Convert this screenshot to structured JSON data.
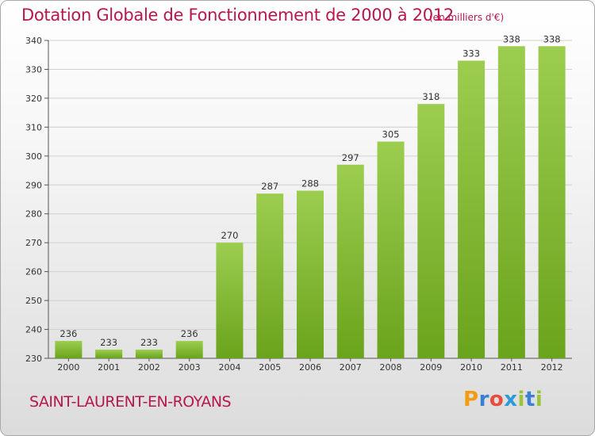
{
  "chart_data": {
    "type": "bar",
    "title": "Dotation Globale de Fonctionnement de 2000 à 2012",
    "subtitle": "(en milliers d'€)",
    "categories": [
      "2000",
      "2001",
      "2002",
      "2003",
      "2004",
      "2005",
      "2006",
      "2007",
      "2008",
      "2009",
      "2010",
      "2011",
      "2012"
    ],
    "values": [
      236,
      233,
      233,
      236,
      270,
      287,
      288,
      297,
      305,
      318,
      333,
      338,
      338
    ],
    "ylim": [
      230,
      340
    ],
    "yticks": [
      230,
      240,
      250,
      260,
      270,
      280,
      290,
      300,
      310,
      320,
      330,
      340
    ],
    "grid": true,
    "bar_color": "#8cc63f"
  },
  "footer": {
    "commune": "SAINT-LAURENT-EN-ROYANS",
    "logo": "Proxiti"
  }
}
